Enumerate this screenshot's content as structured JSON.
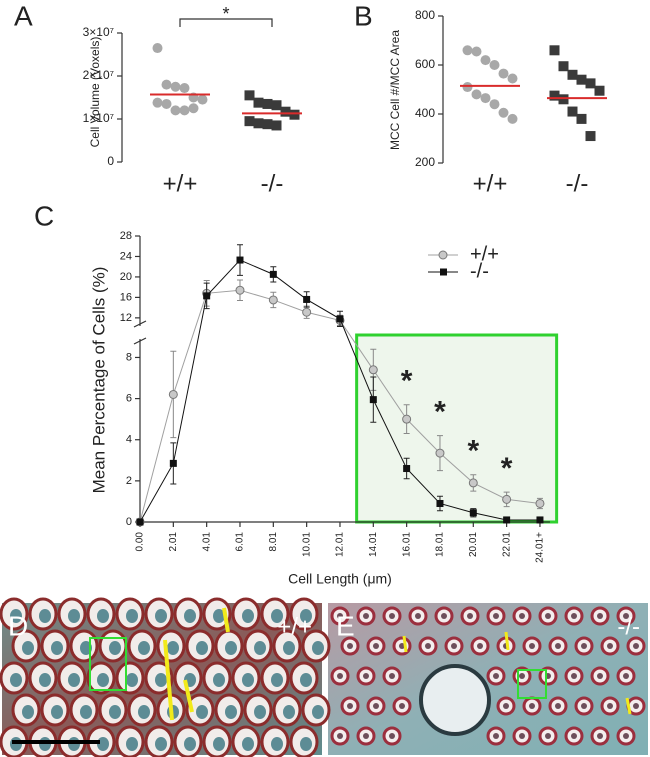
{
  "chart_data": [
    {
      "type": "strip",
      "panel_label": "A",
      "y_label": "Cell Volume (Voxels)",
      "categories": [
        "+/+",
        "-/-"
      ],
      "ylim": [
        0,
        30000000
      ],
      "yticks": [
        0,
        {
          "value": 10000000,
          "label": "1×10⁷"
        },
        {
          "value": 20000000,
          "label": "2×10⁷"
        },
        {
          "value": 30000000,
          "label": "3×10⁷"
        }
      ],
      "series": [
        {
          "color": "#a8a8a8",
          "marker": "circle",
          "mean": 15700000,
          "values": [
            26500000,
            18000000,
            17500000,
            17200000,
            15000000,
            14500000,
            13800000,
            13500000,
            12000000,
            12000000,
            12500000
          ]
        },
        {
          "color": "#3a3a3a",
          "marker": "square",
          "mean": 11300000,
          "values": [
            15500000,
            13800000,
            13500000,
            13200000,
            11700000,
            11000000,
            9500000,
            9000000,
            8800000,
            8500000
          ]
        }
      ],
      "mean_color": "#d92b2b",
      "annotations": [
        {
          "text": "*"
        }
      ]
    },
    {
      "type": "strip",
      "panel_label": "B",
      "y_label": "MCC Cell #/MCC Area",
      "categories": [
        "+/+",
        "-/-"
      ],
      "ylim": [
        200,
        800
      ],
      "yticks": [
        200,
        400,
        600,
        800
      ],
      "series": [
        {
          "color": "#a8a8a8",
          "marker": "circle",
          "mean": 515,
          "values": [
            660,
            655,
            620,
            600,
            565,
            545,
            510,
            480,
            465,
            440,
            405,
            380
          ]
        },
        {
          "color": "#3a3a3a",
          "marker": "square",
          "mean": 465,
          "values": [
            660,
            595,
            560,
            540,
            525,
            495,
            475,
            460,
            410,
            380,
            310
          ]
        }
      ],
      "mean_color": "#d92b2b",
      "annotations": []
    },
    {
      "type": "line",
      "panel_label": "C",
      "y_label": "Mean Percentage of Cells (%)",
      "x_label": "Cell Length (μm)",
      "categories": [
        "0.00",
        "2.01",
        "4.01",
        "6.01",
        "8.01",
        "10.01",
        "12.01",
        "14.01",
        "16.01",
        "18.01",
        "20.01",
        "22.01",
        "24.01+"
      ],
      "ylim": [
        0,
        28
      ],
      "axis_break": [
        8.8,
        10.8
      ],
      "yticks": [
        0,
        2,
        4,
        6,
        8,
        12,
        16,
        20,
        24,
        28
      ],
      "series": [
        {
          "name": "+/+",
          "color": "#a0a0a0",
          "marker": "circle",
          "values": [
            0,
            6.2,
            16.8,
            17.4,
            15.5,
            13.1,
            11.5,
            7.4,
            5.0,
            3.35,
            1.9,
            1.1,
            0.9
          ],
          "errors": [
            0,
            2.1,
            2.5,
            2.0,
            1.5,
            1.2,
            1.0,
            1.0,
            0.7,
            0.85,
            0.4,
            0.35,
            0.25
          ]
        },
        {
          "name": "-/-",
          "color": "#111111",
          "marker": "square",
          "values": [
            0,
            2.85,
            16.3,
            23.3,
            20.5,
            15.6,
            11.8,
            5.95,
            2.6,
            0.9,
            0.45,
            0.1,
            0.1
          ],
          "errors": [
            0,
            1.0,
            2.5,
            3.0,
            1.5,
            1.5,
            1.5,
            1.1,
            0.5,
            0.35,
            0.2,
            0.05,
            0.05
          ]
        }
      ],
      "annotations": [
        {
          "text": "*",
          "x": "16.01"
        },
        {
          "text": "*",
          "x": "18.01"
        },
        {
          "text": "*",
          "x": "20.01"
        },
        {
          "text": "*",
          "x": "22.01"
        }
      ],
      "highlight_color": "#2fd12f"
    }
  ],
  "images": [
    {
      "label": "D",
      "genotype": "+/+"
    },
    {
      "label": "E",
      "genotype": "-/-"
    }
  ]
}
